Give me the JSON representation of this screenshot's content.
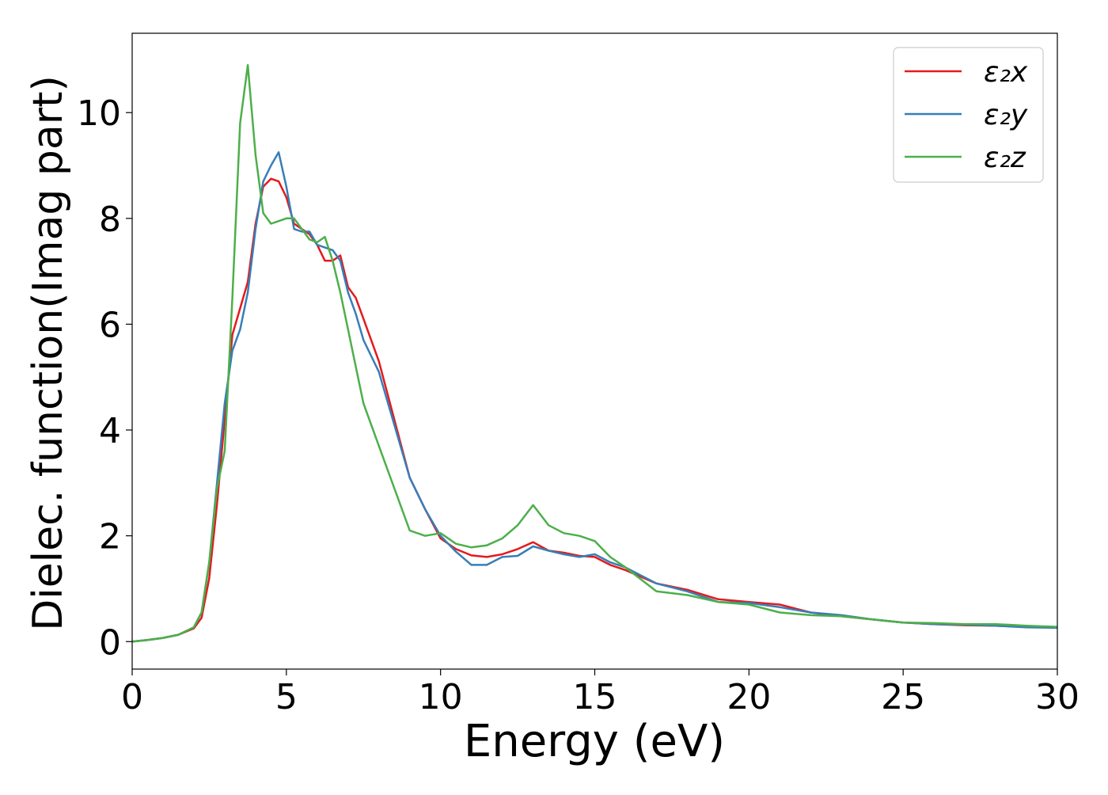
{
  "chart_data": {
    "type": "line",
    "x_label": "Energy (eV)",
    "y_label": "Dielec. function(Imag part)",
    "x": [
      0,
      0.5,
      1,
      1.5,
      2,
      2.25,
      2.5,
      2.75,
      3,
      3.25,
      3.5,
      3.75,
      4,
      4.25,
      4.5,
      4.75,
      5,
      5.25,
      5.5,
      5.75,
      6,
      6.25,
      6.5,
      6.75,
      7,
      7.25,
      7.5,
      8,
      8.5,
      9,
      9.5,
      10,
      10.5,
      11,
      11.5,
      12,
      12.5,
      13,
      13.5,
      14,
      14.5,
      15,
      15.5,
      16,
      17,
      18,
      19,
      20,
      21,
      22,
      23,
      24,
      25,
      26,
      27,
      28,
      29,
      30
    ],
    "series": [
      {
        "name": "ε₂x",
        "color": "#e41a1c",
        "values": [
          0,
          0.03,
          0.07,
          0.13,
          0.25,
          0.45,
          1.2,
          2.6,
          4.2,
          5.8,
          6.3,
          6.8,
          7.9,
          8.6,
          8.75,
          8.7,
          8.4,
          7.9,
          7.8,
          7.7,
          7.5,
          7.2,
          7.2,
          7.3,
          6.7,
          6.5,
          6.1,
          5.3,
          4.2,
          3.1,
          2.5,
          1.95,
          1.75,
          1.63,
          1.6,
          1.65,
          1.75,
          1.88,
          1.72,
          1.68,
          1.62,
          1.6,
          1.45,
          1.35,
          1.1,
          0.98,
          0.8,
          0.75,
          0.7,
          0.55,
          0.48,
          0.42,
          0.36,
          0.33,
          0.31,
          0.3,
          0.28,
          0.27
        ]
      },
      {
        "name": "ε₂y",
        "color": "#377eb8",
        "values": [
          0,
          0.03,
          0.07,
          0.13,
          0.27,
          0.55,
          1.5,
          3.0,
          4.5,
          5.5,
          5.9,
          6.6,
          7.8,
          8.7,
          9.0,
          9.25,
          8.6,
          7.8,
          7.75,
          7.75,
          7.5,
          7.45,
          7.4,
          7.2,
          6.6,
          6.2,
          5.7,
          5.1,
          4.1,
          3.1,
          2.5,
          2.0,
          1.7,
          1.45,
          1.45,
          1.6,
          1.62,
          1.8,
          1.72,
          1.65,
          1.6,
          1.65,
          1.5,
          1.4,
          1.1,
          0.95,
          0.75,
          0.73,
          0.65,
          0.55,
          0.5,
          0.42,
          0.36,
          0.33,
          0.32,
          0.3,
          0.27,
          0.26
        ]
      },
      {
        "name": "ε₂z",
        "color": "#4daf4a",
        "values": [
          0,
          0.03,
          0.07,
          0.13,
          0.27,
          0.55,
          1.5,
          2.9,
          3.6,
          6.5,
          9.8,
          10.9,
          9.2,
          8.1,
          7.9,
          7.95,
          8.0,
          8.0,
          7.8,
          7.6,
          7.55,
          7.65,
          7.2,
          6.6,
          5.9,
          5.2,
          4.5,
          3.7,
          2.9,
          2.1,
          2.0,
          2.05,
          1.85,
          1.78,
          1.82,
          1.95,
          2.2,
          2.58,
          2.2,
          2.05,
          2.0,
          1.9,
          1.6,
          1.4,
          0.95,
          0.88,
          0.75,
          0.7,
          0.55,
          0.5,
          0.48,
          0.42,
          0.36,
          0.35,
          0.33,
          0.33,
          0.3,
          0.28
        ]
      }
    ],
    "xlim": [
      0,
      30
    ],
    "ylim": [
      -0.52,
      11.5
    ],
    "xticks": [
      0,
      5,
      10,
      15,
      20,
      25,
      30
    ],
    "yticks": [
      0,
      2,
      4,
      6,
      8,
      10
    ],
    "legend": "upper right",
    "grid": false
  }
}
